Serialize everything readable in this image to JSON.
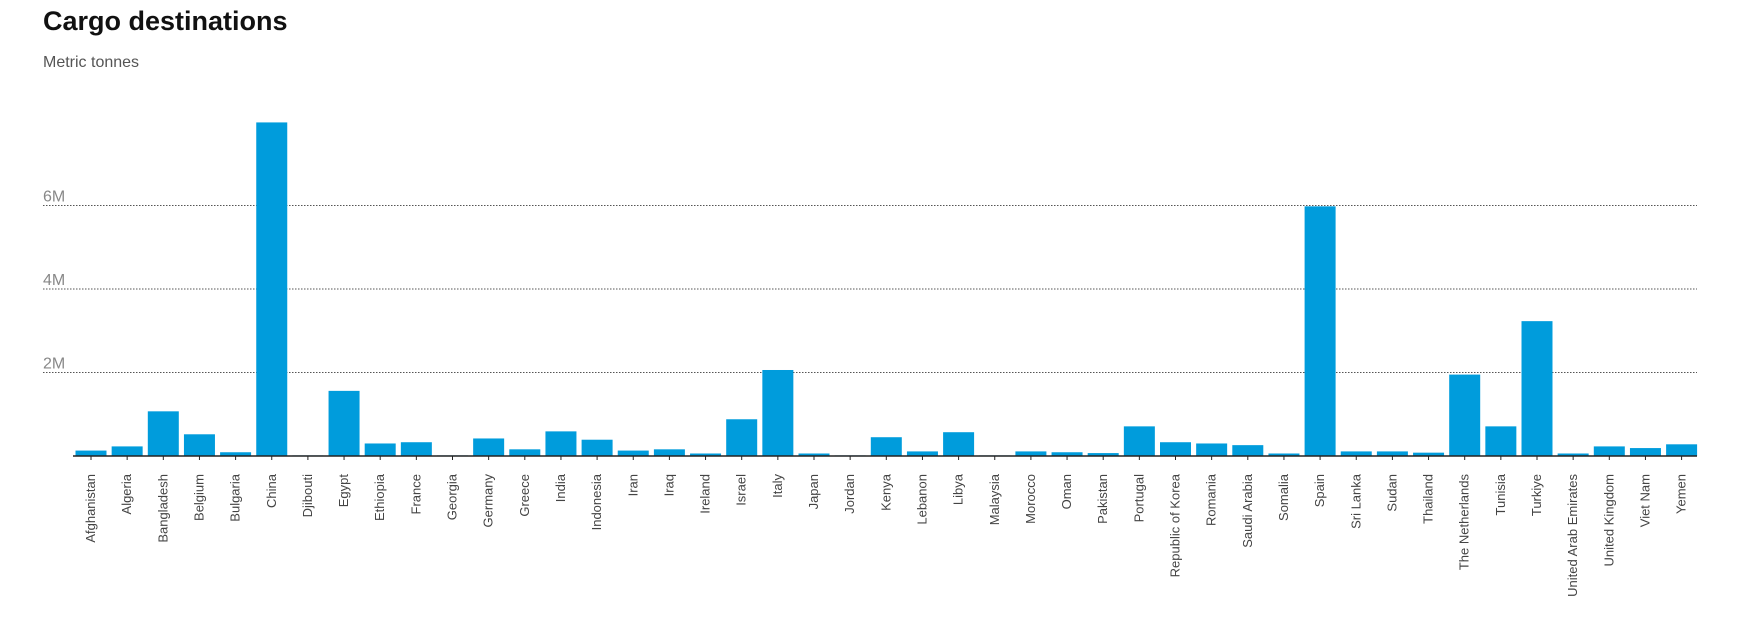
{
  "chart_data": {
    "type": "bar",
    "title": "Cargo destinations",
    "subtitle": "Metric tonnes",
    "xlabel": "",
    "ylabel": "",
    "ylim": [
      0,
      8000000
    ],
    "yticks": [
      {
        "value": 2000000,
        "label": "2M"
      },
      {
        "value": 4000000,
        "label": "4M"
      },
      {
        "value": 6000000,
        "label": "6M"
      }
    ],
    "grid": true,
    "bar_color": "#009cdc",
    "categories": [
      "Afghanistan",
      "Algeria",
      "Bangladesh",
      "Belgium",
      "Bulgaria",
      "China",
      "Djibouti",
      "Egypt",
      "Ethiopia",
      "France",
      "Georgia",
      "Germany",
      "Greece",
      "India",
      "Indonesia",
      "Iran",
      "Iraq",
      "Ireland",
      "Israel",
      "Italy",
      "Japan",
      "Jordan",
      "Kenya",
      "Lebanon",
      "Libya",
      "Malaysia",
      "Morocco",
      "Oman",
      "Pakistan",
      "Portugal",
      "Republic of Korea",
      "Romania",
      "Saudi Arabia",
      "Somalia",
      "Spain",
      "Sri Lanka",
      "Sudan",
      "Thailand",
      "The Netherlands",
      "Tunisia",
      "Turkiye",
      "United Arab Emirates",
      "United Kingdom",
      "Viet Nam",
      "Yemen"
    ],
    "values": [
      130000,
      230000,
      1070000,
      520000,
      90000,
      7990000,
      10000,
      1560000,
      300000,
      330000,
      10000,
      420000,
      160000,
      590000,
      390000,
      130000,
      160000,
      60000,
      880000,
      2060000,
      60000,
      10000,
      450000,
      110000,
      570000,
      10000,
      110000,
      90000,
      70000,
      710000,
      330000,
      300000,
      260000,
      60000,
      5980000,
      110000,
      110000,
      80000,
      1950000,
      710000,
      3230000,
      60000,
      230000,
      190000,
      280000
    ]
  }
}
